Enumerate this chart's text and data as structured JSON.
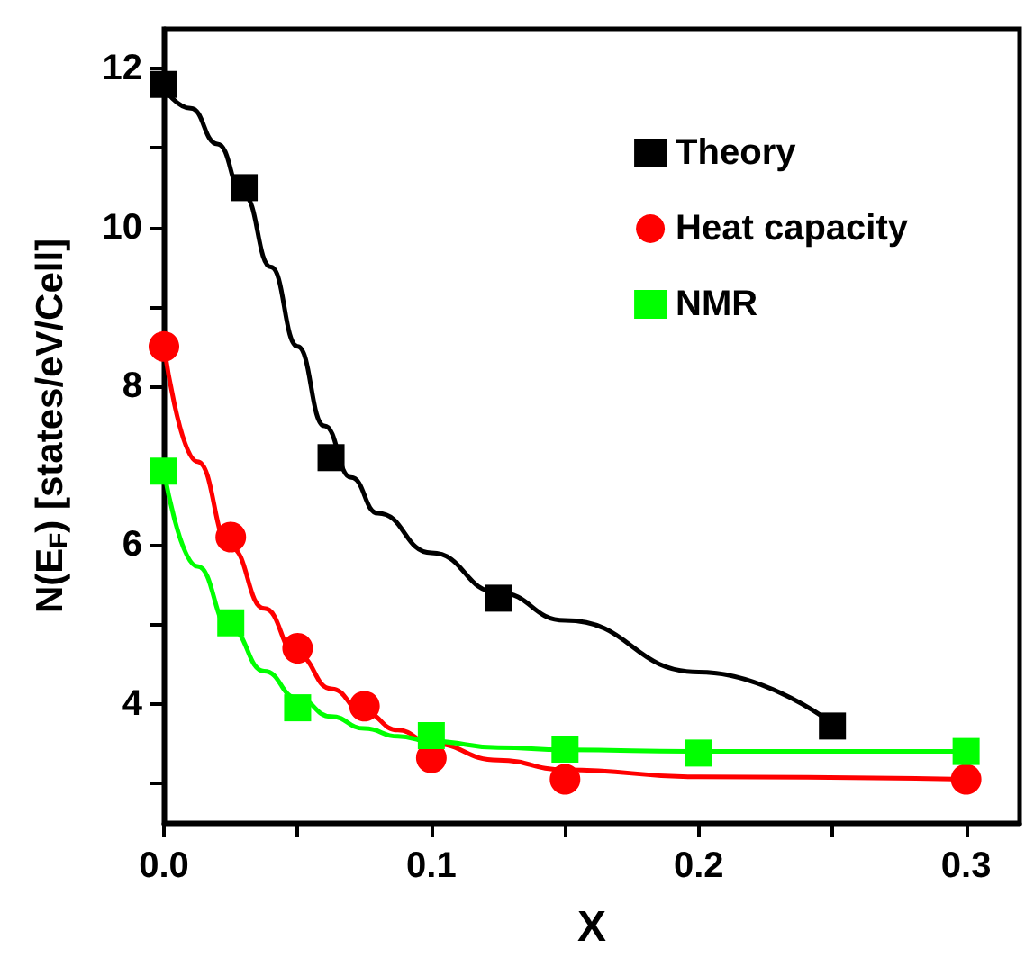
{
  "chart_data": {
    "type": "scatter",
    "xlabel": "X",
    "ylabel": "N(E$_{F}$) [states/eV/Cell]",
    "xlim": [
      0,
      0.32
    ],
    "ylim": [
      2.5,
      12.5
    ],
    "xticks": [
      {
        "value": 0,
        "label": "0.0"
      },
      {
        "value": 0.05,
        "label": null
      },
      0.1,
      {
        "value": 0.15,
        "label": null
      },
      0.2,
      {
        "value": 0.25,
        "label": null
      },
      0.3
    ],
    "yticks": [
      {
        "value": 3,
        "label": null
      },
      4,
      {
        "value": 5,
        "label": null
      },
      6,
      {
        "value": 7,
        "label": null
      },
      8,
      {
        "value": 9,
        "label": null
      },
      10,
      {
        "value": 11,
        "label": null
      },
      12
    ],
    "grid": false,
    "legend": "top right",
    "series": [
      {
        "name": "Theory",
        "marker": "square",
        "color": "#000000",
        "x": [
          0,
          0.03,
          0.0625,
          0.125,
          0.25
        ],
        "values": [
          11.8,
          10.5,
          7.1,
          5.33,
          3.72
        ]
      },
      {
        "name": "Heat capacity",
        "marker": "circle",
        "color": "#ff0000",
        "x": [
          0,
          0.025,
          0.05,
          0.075,
          0.1,
          0.15,
          0.3
        ],
        "values": [
          8.5,
          6.1,
          4.7,
          3.97,
          3.32,
          3.05,
          3.05
        ]
      },
      {
        "name": "NMR",
        "marker": "square",
        "color": "#00ff00",
        "x": [
          0,
          0.025,
          0.05,
          0.1,
          0.15,
          0.2,
          0.3
        ],
        "values": [
          6.93,
          5.02,
          3.95,
          3.6,
          3.43,
          3.38,
          3.4
        ]
      },
      {
        "type": "line",
        "marker": "none",
        "color": "#000000",
        "x": [
          0,
          0.01,
          0.02,
          0.03,
          0.04,
          0.05,
          0.06,
          0.07,
          0.08,
          0.1,
          0.125,
          0.15,
          0.2,
          0.25
        ],
        "values": [
          11.75,
          11.5,
          11.05,
          10.4,
          9.5,
          8.5,
          7.5,
          6.85,
          6.4,
          5.9,
          5.4,
          5.05,
          4.4,
          3.75
        ]
      },
      {
        "type": "line",
        "marker": "none",
        "color": "#ff0000",
        "x": [
          0,
          0.0125,
          0.025,
          0.0375,
          0.05,
          0.0625,
          0.075,
          0.0875,
          0.1,
          0.125,
          0.15,
          0.2,
          0.3
        ],
        "values": [
          8.5,
          7.05,
          5.97,
          5.2,
          4.61,
          4.19,
          3.89,
          3.67,
          3.5,
          3.29,
          3.17,
          3.08,
          3.05
        ]
      },
      {
        "type": "line",
        "marker": "none",
        "color": "#00ff00",
        "x": [
          0,
          0.0125,
          0.025,
          0.0375,
          0.05,
          0.0625,
          0.075,
          0.0875,
          0.1,
          0.125,
          0.15,
          0.2,
          0.3
        ],
        "values": [
          6.93,
          5.73,
          4.94,
          4.41,
          4.07,
          3.84,
          3.69,
          3.59,
          3.53,
          3.45,
          3.42,
          3.4,
          3.4
        ]
      }
    ]
  }
}
